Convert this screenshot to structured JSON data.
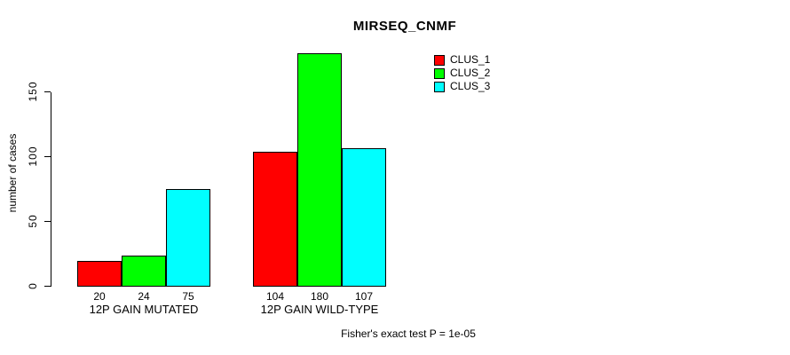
{
  "chart_data": {
    "type": "bar",
    "title": "MIRSEQ_CNMF",
    "ylabel": "number of cases",
    "xlabel": "",
    "categories": [
      "12P GAIN MUTATED",
      "12P GAIN WILD-TYPE"
    ],
    "series": [
      {
        "name": "CLUS_1",
        "color": "#ff0000",
        "values": [
          20,
          104
        ]
      },
      {
        "name": "CLUS_2",
        "color": "#00ff00",
        "values": [
          24,
          180
        ]
      },
      {
        "name": "CLUS_3",
        "color": "#00ffff",
        "values": [
          75,
          107
        ]
      }
    ],
    "bar_value_labels": [
      [
        "20",
        "24",
        "75"
      ],
      [
        "104",
        "180",
        "107"
      ]
    ],
    "yticks": [
      "0",
      "50",
      "100",
      "150"
    ],
    "ytick_values": [
      0,
      50,
      100,
      150
    ],
    "ylim": [
      0,
      185
    ],
    "grid": false,
    "legend_position": "top-right",
    "annotation": "Fisher's exact test P = 1e-05",
    "bar_border_color": "#000000",
    "axis_color": "#000000"
  }
}
